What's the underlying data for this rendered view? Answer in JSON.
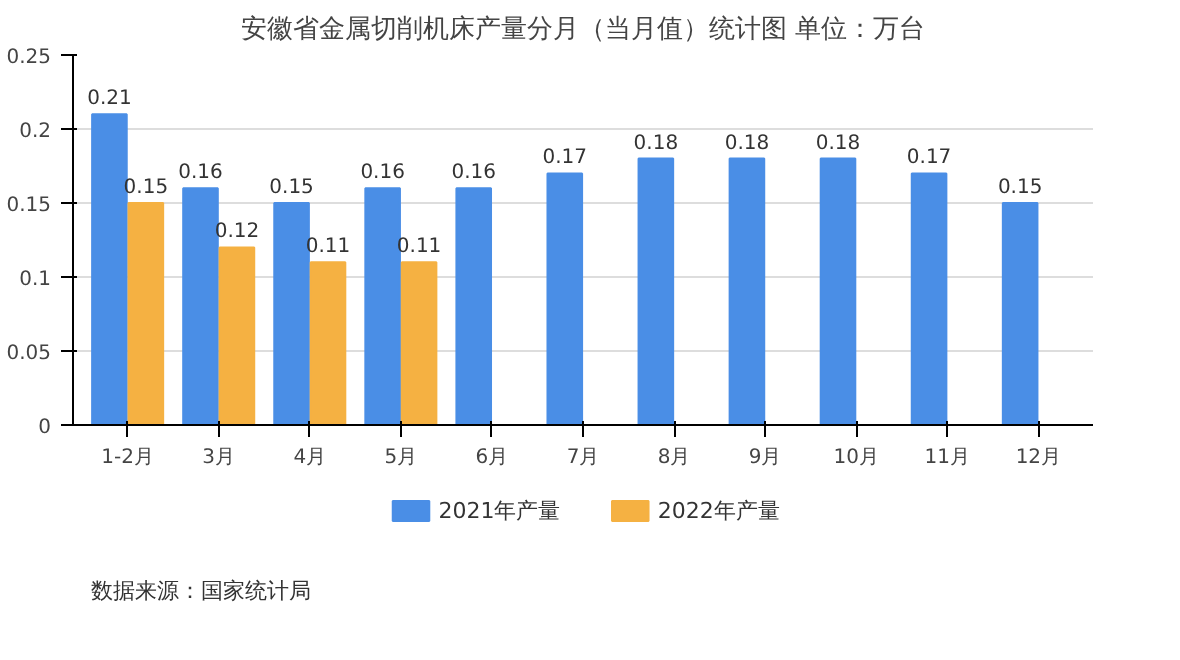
{
  "chart_data": {
    "type": "bar",
    "title": "安徽省金属切削机床产量分月（当月值）统计图 单位：万台",
    "categories": [
      "1-2月",
      "3月",
      "4月",
      "5月",
      "6月",
      "7月",
      "8月",
      "9月",
      "10月",
      "11月",
      "12月"
    ],
    "series": [
      {
        "name": "2021年产量",
        "color": "#4a8ee6",
        "values": [
          0.21,
          0.16,
          0.15,
          0.16,
          0.16,
          0.17,
          0.18,
          0.18,
          0.18,
          0.17,
          0.15
        ]
      },
      {
        "name": "2022年产量",
        "color": "#f5b142",
        "values": [
          0.15,
          0.12,
          0.11,
          0.11,
          null,
          null,
          null,
          null,
          null,
          null,
          null
        ]
      }
    ],
    "ylim": [
      0,
      0.25
    ],
    "yticks": [
      0,
      0.05,
      0.1,
      0.15,
      0.2,
      0.25
    ],
    "grid": "y",
    "legend": "bottom",
    "data_labels": true,
    "annotations": [
      "数据来源：国家统计局"
    ]
  }
}
